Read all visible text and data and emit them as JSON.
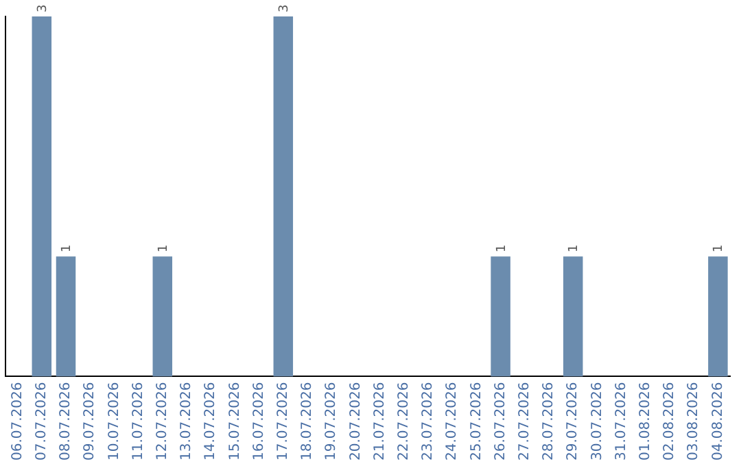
{
  "chart_data": {
    "type": "bar",
    "categories": [
      "06.07.2026",
      "07.07.2026",
      "08.07.2026",
      "09.07.2026",
      "10.07.2026",
      "11.07.2026",
      "12.07.2026",
      "13.07.2026",
      "14.07.2026",
      "15.07.2026",
      "16.07.2026",
      "17.07.2026",
      "18.07.2026",
      "19.07.2026",
      "20.07.2026",
      "21.07.2026",
      "22.07.2026",
      "23.07.2026",
      "24.07.2026",
      "25.07.2026",
      "26.07.2026",
      "27.07.2026",
      "28.07.2026",
      "29.07.2026",
      "30.07.2026",
      "31.07.2026",
      "01.08.2026",
      "02.08.2026",
      "03.08.2026",
      "04.08.2026"
    ],
    "values": [
      0,
      3,
      1,
      0,
      0,
      0,
      1,
      0,
      0,
      0,
      0,
      3,
      0,
      0,
      0,
      0,
      0,
      0,
      0,
      0,
      1,
      0,
      0,
      1,
      0,
      0,
      0,
      0,
      0,
      1
    ],
    "value_labels": [
      null,
      "3",
      "1",
      null,
      null,
      null,
      "1",
      null,
      null,
      null,
      null,
      "3",
      null,
      null,
      null,
      null,
      null,
      null,
      null,
      null,
      "1",
      null,
      null,
      "1",
      null,
      null,
      null,
      null,
      null,
      "1"
    ],
    "color": "#6b8cae",
    "ylim": [
      0,
      3
    ],
    "tick_labels": "x",
    "grid": false,
    "legend": false
  }
}
